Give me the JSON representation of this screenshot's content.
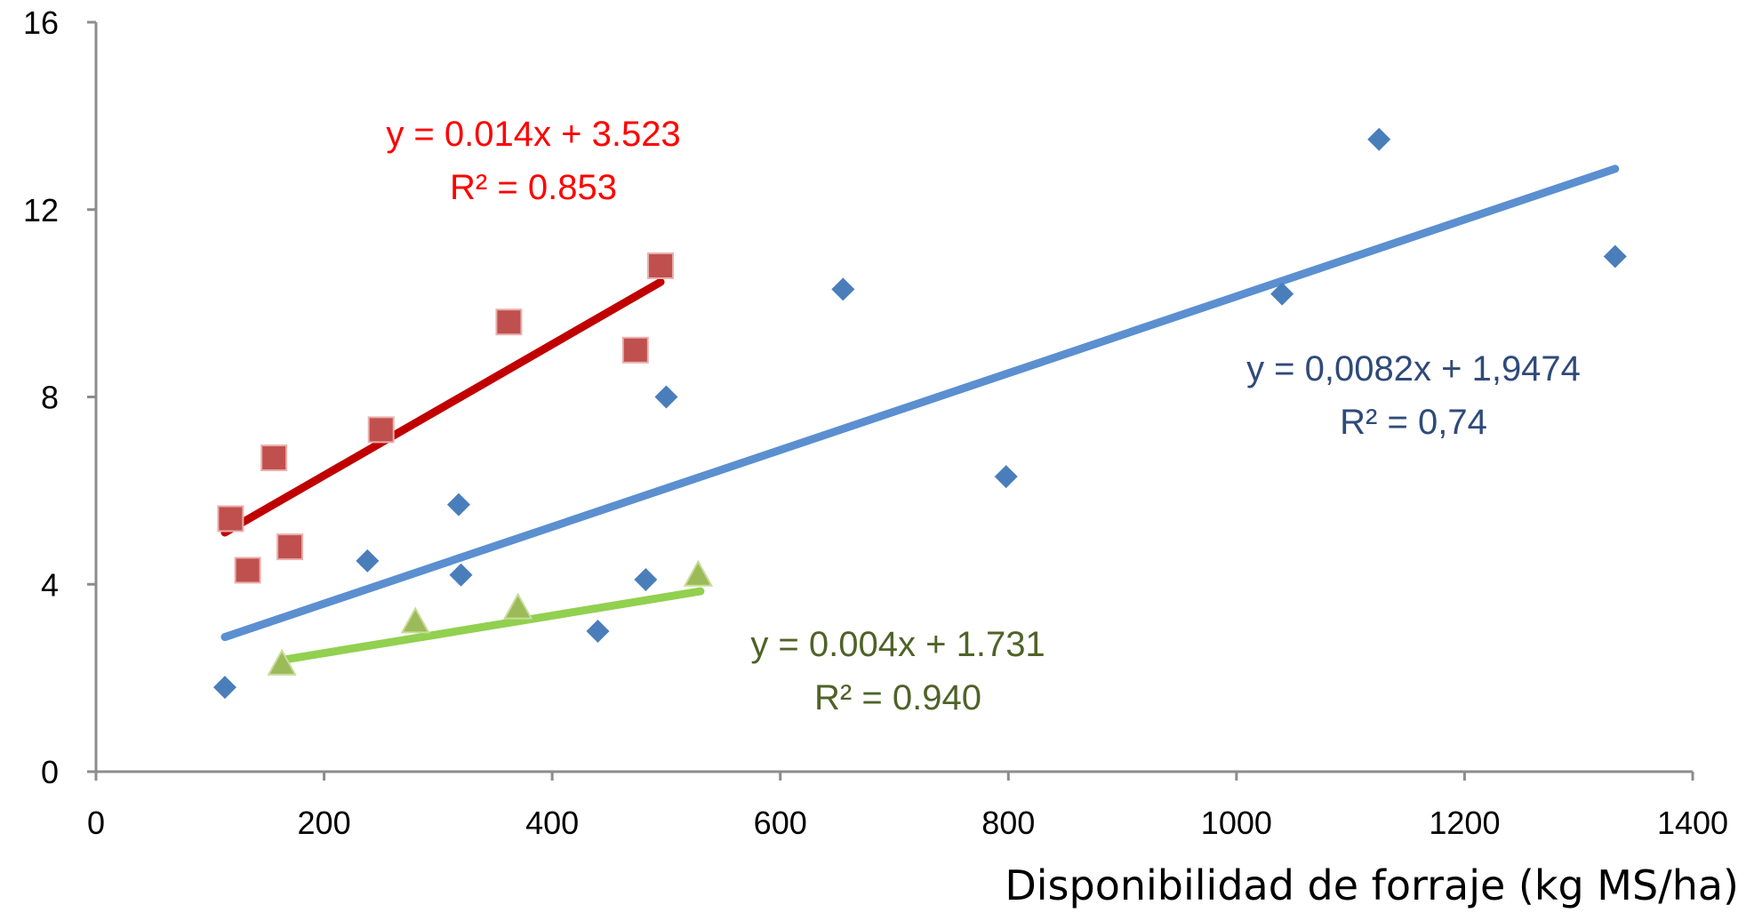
{
  "chart_data": {
    "type": "scatter",
    "title": "",
    "xlabel": "Disponibilidad de forraje (kg MS/ha)",
    "ylabel": "",
    "xlim": [
      0,
      1400
    ],
    "ylim": [
      0,
      16
    ],
    "x_ticks": [
      "0",
      "200",
      "400",
      "600",
      "800",
      "1000",
      "1200",
      "1400"
    ],
    "y_ticks": [
      "0",
      "4",
      "8",
      "12",
      "16"
    ],
    "grid": false,
    "legend": "none",
    "series": [
      {
        "marker": "diamond",
        "color": "#4a7ebb",
        "line_color": "#5b8fd0",
        "points": [
          [
            113,
            1.8
          ],
          [
            238,
            4.5
          ],
          [
            318,
            5.7
          ],
          [
            320,
            4.2
          ],
          [
            440,
            3.0
          ],
          [
            482,
            4.1
          ],
          [
            500,
            8.0
          ],
          [
            655,
            10.3
          ],
          [
            798,
            6.3
          ],
          [
            1040,
            10.2
          ],
          [
            1125,
            13.5
          ],
          [
            1332,
            11.0
          ]
        ],
        "trend": {
          "slope": 0.0082,
          "intercept": 1.9474,
          "x_range": [
            113,
            1332
          ]
        },
        "equation": "y = 0,0082x + 1,9474",
        "r2": "R² = 0,74",
        "label_color": "#2f4a7a"
      },
      {
        "marker": "square",
        "color": "#c0504d",
        "line_color": "#c00000",
        "points": [
          [
            118,
            5.4
          ],
          [
            133,
            4.3
          ],
          [
            156,
            6.7
          ],
          [
            170,
            4.8
          ],
          [
            250,
            7.3
          ],
          [
            362,
            9.6
          ],
          [
            473,
            9.0
          ],
          [
            495,
            10.8
          ]
        ],
        "trend": {
          "slope": 0.014,
          "intercept": 3.523,
          "x_range": [
            113,
            495
          ]
        },
        "equation": "y = 0.014x + 3.523",
        "r2": "R² = 0.853",
        "label_color": "#ff0000"
      },
      {
        "marker": "triangle",
        "color": "#9bbb59",
        "line_color": "#92d050",
        "points": [
          [
            163,
            2.3
          ],
          [
            280,
            3.2
          ],
          [
            370,
            3.5
          ],
          [
            528,
            4.2
          ]
        ],
        "trend": {
          "slope": 0.004,
          "intercept": 1.731,
          "x_range": [
            165,
            530
          ]
        },
        "equation": "y = 0.004x + 1.731",
        "r2": "R² = 0.940",
        "label_color": "#4f6228"
      }
    ]
  }
}
